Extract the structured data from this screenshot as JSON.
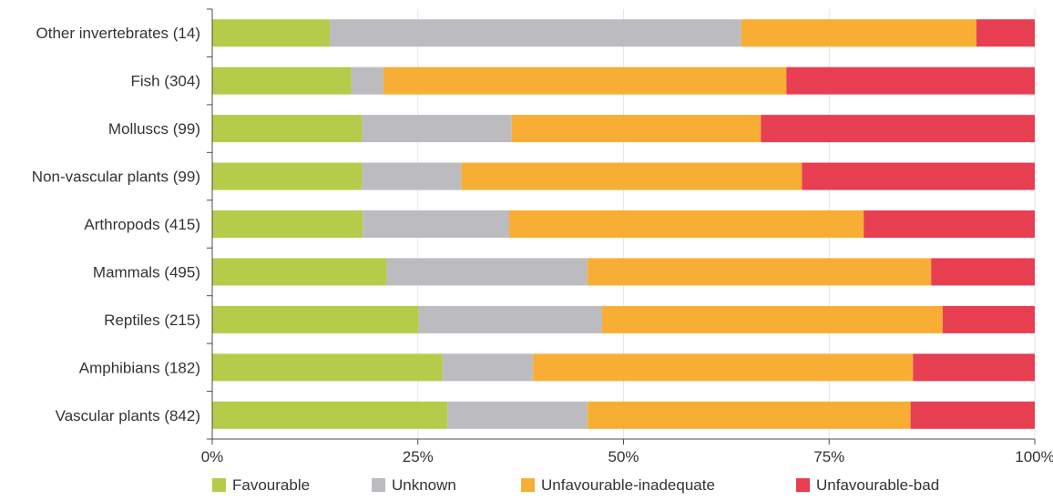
{
  "chart_data": {
    "type": "bar",
    "orientation": "horizontal",
    "stacked": true,
    "categories": [
      "Other invertebrates (14)",
      "Fish (304)",
      "Molluscs (99)",
      "Non-vascular plants (99)",
      "Arthropods (415)",
      "Mammals (495)",
      "Reptiles (215)",
      "Amphibians (182)",
      "Vascular plants (842)"
    ],
    "series": [
      {
        "name": "Favourable",
        "color": "#b5cc4a",
        "values": [
          14.3,
          16.9,
          18.2,
          18.2,
          18.3,
          21.2,
          25.1,
          28.0,
          28.6
        ]
      },
      {
        "name": "Unknown",
        "color": "#bcbcc0",
        "values": [
          50.0,
          3.9,
          18.2,
          12.1,
          17.8,
          24.4,
          22.3,
          11.0,
          17.0
        ]
      },
      {
        "name": "Unfavourable-inadequate",
        "color": "#f8ae34",
        "values": [
          28.6,
          49.0,
          30.3,
          41.4,
          43.1,
          41.8,
          41.4,
          46.2,
          39.3
        ]
      },
      {
        "name": "Unfavourable-bad",
        "color": "#e83e52",
        "values": [
          7.1,
          30.2,
          33.3,
          28.3,
          20.8,
          12.6,
          11.2,
          14.8,
          15.1
        ]
      }
    ],
    "x_ticks": [
      "0%",
      "25%",
      "50%",
      "75%",
      "100%"
    ],
    "xlim": [
      0,
      100
    ],
    "grid": true,
    "legend_position": "bottom"
  }
}
